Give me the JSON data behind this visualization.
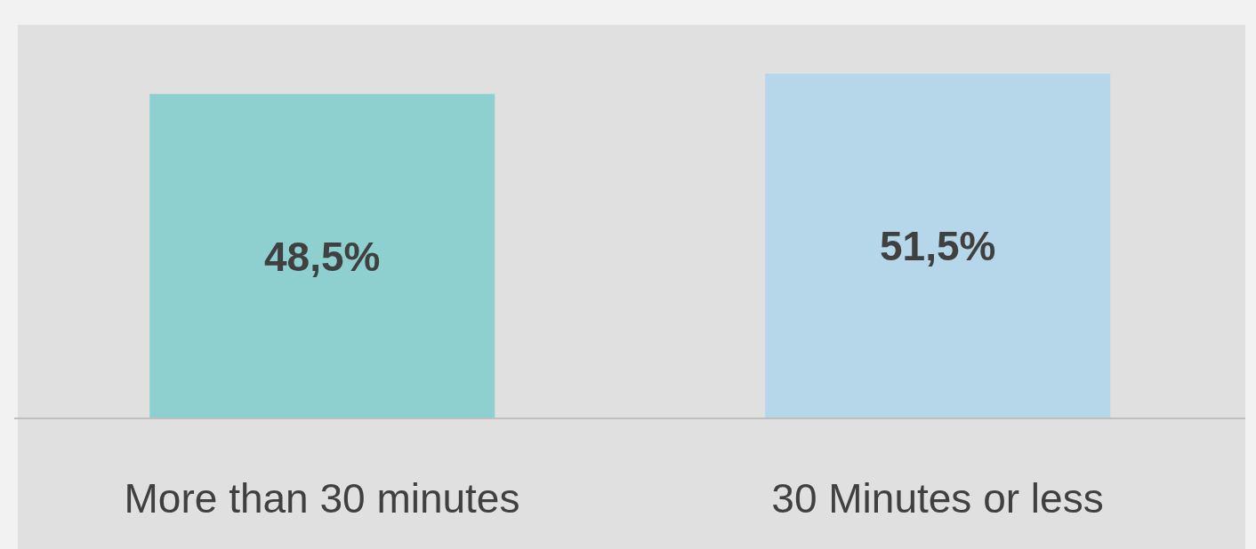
{
  "chart_data": {
    "type": "bar",
    "categories": [
      "More than 30 minutes",
      "30 Minutes or less"
    ],
    "values": [
      48.5,
      51.5
    ],
    "value_labels": [
      "48,5%",
      "51,5%"
    ],
    "colors": [
      "#8ecfcf",
      "#b6d7ea"
    ],
    "grid": false,
    "legend": false
  }
}
